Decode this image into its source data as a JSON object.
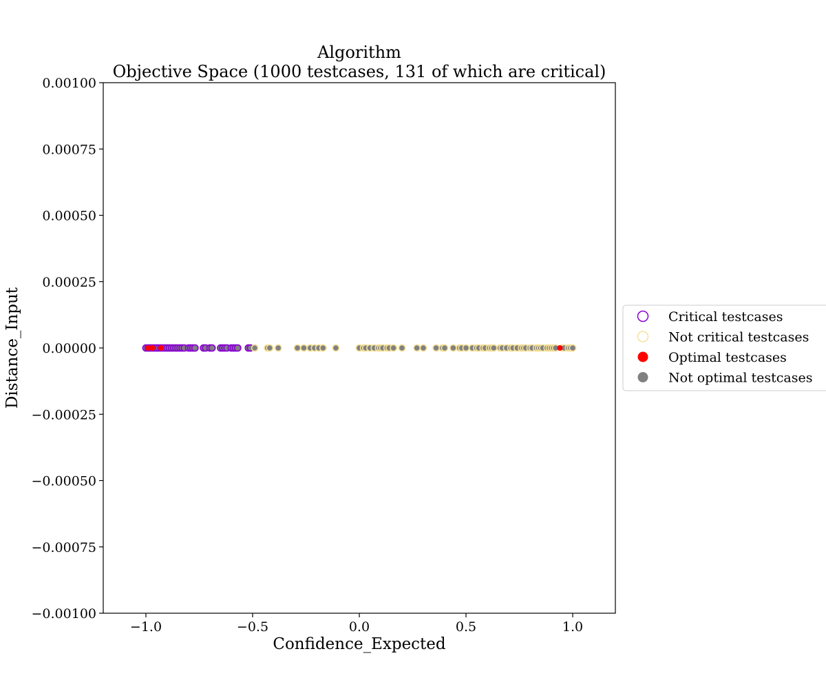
{
  "chart_data": {
    "type": "scatter",
    "title": "Algorithm",
    "subtitle": "Objective Space (1000 testcases, 131 of which are critical)",
    "xlabel": "Confidence_Expected",
    "ylabel": "Distance_Input",
    "xlim": [
      -1.2,
      1.2
    ],
    "ylim": [
      -0.001,
      0.001
    ],
    "x_ticks": [
      -1.0,
      -0.5,
      0.0,
      0.5,
      1.0
    ],
    "x_tick_labels": [
      "−1.0",
      "−0.5",
      "0.0",
      "0.5",
      "1.0"
    ],
    "y_ticks": [
      0.001,
      0.00075,
      0.0005,
      0.00025,
      0.0,
      -0.00025,
      -0.0005,
      -0.00075,
      -0.001
    ],
    "y_tick_labels": [
      "0.00100",
      "0.00075",
      "0.00050",
      "0.00025",
      "0.00000",
      "−0.00025",
      "−0.00050",
      "−0.00075",
      "−0.00100"
    ],
    "grid": false,
    "legend_position": "right",
    "legend": [
      {
        "label": "Critical testcases",
        "marker": "hollow",
        "color": "#8a00d4"
      },
      {
        "label": "Not critical testcases",
        "marker": "hollow",
        "color": "#f5e19a"
      },
      {
        "label": "Optimal testcases",
        "marker": "filled",
        "color": "#ff0000"
      },
      {
        "label": "Not optimal testcases",
        "marker": "filled",
        "color": "#808080"
      }
    ],
    "colors": {
      "critical_edge": "#8a00d4",
      "not_critical_edge": "#f5e19a",
      "optimal_fill": "#ff0000",
      "not_optimal_fill": "#808080"
    },
    "series": [
      {
        "name": "Critical testcases",
        "edge": "#8a00d4",
        "x": [
          -1.0,
          -0.99,
          -0.98,
          -0.97,
          -0.96,
          -0.95,
          -0.94,
          -0.93,
          -0.92,
          -0.91,
          -0.9,
          -0.89,
          -0.88,
          -0.87,
          -0.86,
          -0.85,
          -0.84,
          -0.83,
          -0.82,
          -0.8,
          -0.79,
          -0.78,
          -0.77,
          -0.73,
          -0.72,
          -0.7,
          -0.69,
          -0.65,
          -0.64,
          -0.63,
          -0.62,
          -0.6,
          -0.59,
          -0.58,
          -0.57,
          -0.52,
          -0.51
        ],
        "y": [
          0,
          0,
          0,
          0,
          0,
          0,
          0,
          0,
          0,
          0,
          0,
          0,
          0,
          0,
          0,
          0,
          0,
          0,
          0,
          0,
          0,
          0,
          0,
          0,
          0,
          0,
          0,
          0,
          0,
          0,
          0,
          0,
          0,
          0,
          0,
          0,
          0
        ]
      },
      {
        "name": "Not critical testcases",
        "edge": "#f5e19a",
        "x": [
          -0.49,
          -0.43,
          -0.42,
          -0.38,
          -0.29,
          -0.26,
          -0.23,
          -0.21,
          -0.19,
          -0.17,
          -0.11,
          0.0,
          0.02,
          0.03,
          0.05,
          0.07,
          0.09,
          0.1,
          0.11,
          0.13,
          0.14,
          0.16,
          0.2,
          0.27,
          0.3,
          0.36,
          0.39,
          0.4,
          0.44,
          0.47,
          0.48,
          0.5,
          0.53,
          0.55,
          0.56,
          0.58,
          0.59,
          0.61,
          0.62,
          0.63,
          0.66,
          0.67,
          0.69,
          0.71,
          0.72,
          0.74,
          0.76,
          0.77,
          0.78,
          0.8,
          0.81,
          0.83,
          0.84,
          0.85,
          0.86,
          0.88,
          0.89,
          0.9,
          0.91,
          0.92,
          0.95,
          0.96,
          0.98,
          0.99,
          1.0
        ],
        "y": [
          0,
          0,
          0,
          0,
          0,
          0,
          0,
          0,
          0,
          0,
          0,
          0,
          0,
          0,
          0,
          0,
          0,
          0,
          0,
          0,
          0,
          0,
          0,
          0,
          0,
          0,
          0,
          0,
          0,
          0,
          0,
          0,
          0,
          0,
          0,
          0,
          0,
          0,
          0,
          0,
          0,
          0,
          0,
          0,
          0,
          0,
          0,
          0,
          0,
          0,
          0,
          0,
          0,
          0,
          0,
          0,
          0,
          0,
          0,
          0,
          0,
          0,
          0,
          0,
          0
        ]
      },
      {
        "name": "Optimal testcases",
        "fill": "#ff0000",
        "x": [
          -0.99,
          -0.97,
          -0.93,
          0.94
        ],
        "y": [
          0,
          0,
          0,
          0
        ]
      }
    ]
  }
}
